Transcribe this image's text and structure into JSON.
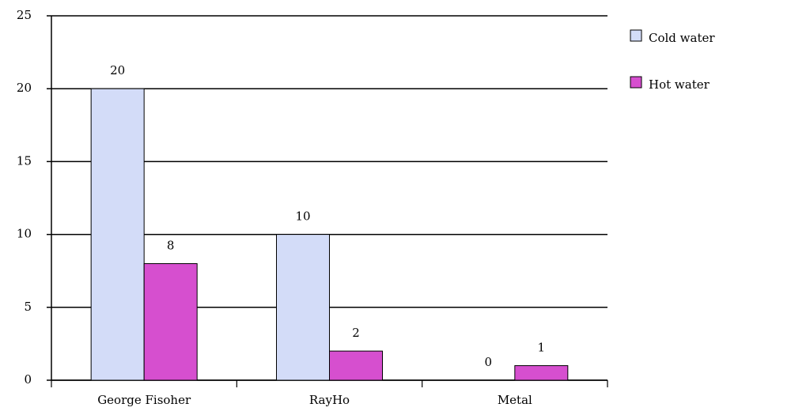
{
  "chart_data": {
    "type": "bar",
    "categories": [
      "George Fisoher",
      "RayHo",
      "Metal"
    ],
    "series": [
      {
        "name": "Cold water",
        "color": "#d3dcf8",
        "values": [
          20,
          10,
          0
        ]
      },
      {
        "name": "Hot water",
        "color": "#d64fcf",
        "values": [
          8,
          2,
          1
        ]
      }
    ],
    "ylim": [
      0,
      25
    ],
    "yticks": [
      0,
      5,
      10,
      15,
      20,
      25
    ],
    "grid": true,
    "legend": "right"
  }
}
